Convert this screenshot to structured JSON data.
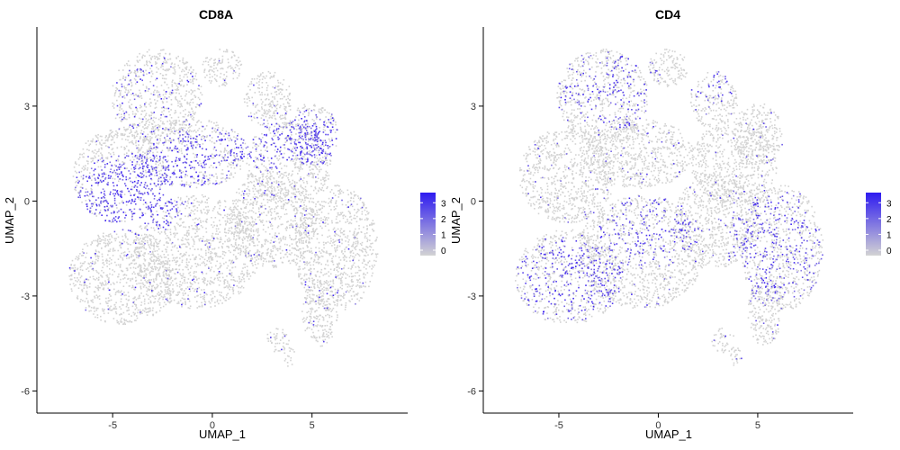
{
  "chart_data": [
    {
      "type": "scatter",
      "title": "CD8A",
      "xlabel": "UMAP_1",
      "ylabel": "UMAP_2",
      "xticks": [
        -5,
        0,
        5
      ],
      "yticks": [
        -6,
        -3,
        0,
        3
      ],
      "xlim": [
        -8.8,
        9.8
      ],
      "ylim": [
        -6.7,
        5.5
      ],
      "grid": false,
      "legend": {
        "position": "right",
        "ticks": [
          3,
          2,
          1,
          0
        ],
        "color_low": "#d3d3d3",
        "color_high": "#2e1bf0"
      },
      "point_color_low": "#d3d3d3",
      "point_color_high": "#3a1ff2",
      "high_expression_regions": [
        {
          "cx": -4.2,
          "cy": 0.2,
          "rx": 3.0,
          "ry": 1.3,
          "weight": 0.9
        },
        {
          "cx": -1.2,
          "cy": 1.2,
          "rx": 2.2,
          "ry": 1.0,
          "weight": 0.6
        },
        {
          "cx": 2.2,
          "cy": 1.8,
          "rx": 2.0,
          "ry": 0.9,
          "weight": 0.6
        },
        {
          "cx": 5.0,
          "cy": 2.0,
          "rx": 1.4,
          "ry": 0.9,
          "weight": 0.75
        },
        {
          "cx": -3.5,
          "cy": 3.2,
          "rx": 1.6,
          "ry": 1.2,
          "weight": 0.25
        }
      ]
    },
    {
      "type": "scatter",
      "title": "CD4",
      "xlabel": "UMAP_1",
      "ylabel": "UMAP_2",
      "xticks": [
        -5,
        0,
        5
      ],
      "yticks": [
        -6,
        -3,
        0,
        3
      ],
      "xlim": [
        -8.8,
        9.8
      ],
      "ylim": [
        -6.7,
        5.5
      ],
      "grid": false,
      "legend": {
        "position": "right",
        "ticks": [
          3,
          2,
          1,
          0
        ],
        "color_low": "#d3d3d3",
        "color_high": "#2e1bf0"
      },
      "point_color_low": "#d3d3d3",
      "point_color_high": "#3a1ff2",
      "high_expression_regions": [
        {
          "cx": -4.5,
          "cy": -2.5,
          "rx": 2.8,
          "ry": 1.3,
          "weight": 0.5
        },
        {
          "cx": -0.5,
          "cy": -1.0,
          "rx": 2.5,
          "ry": 1.2,
          "weight": 0.4
        },
        {
          "cx": 6.0,
          "cy": -1.5,
          "rx": 2.5,
          "ry": 1.8,
          "weight": 0.45
        },
        {
          "cx": -2.5,
          "cy": 3.5,
          "rx": 3.0,
          "ry": 1.3,
          "weight": 0.35
        },
        {
          "cx": 2.8,
          "cy": 3.6,
          "rx": 1.0,
          "ry": 0.6,
          "weight": 0.3
        }
      ]
    }
  ]
}
